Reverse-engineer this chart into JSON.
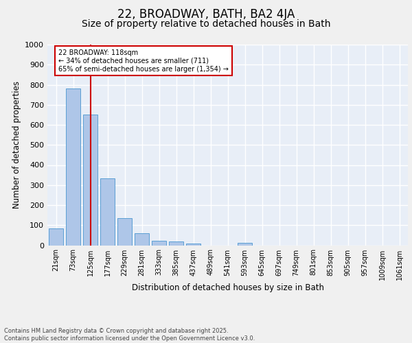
{
  "title1": "22, BROADWAY, BATH, BA2 4JA",
  "title2": "Size of property relative to detached houses in Bath",
  "xlabel": "Distribution of detached houses by size in Bath",
  "ylabel": "Number of detached properties",
  "bar_labels": [
    "21sqm",
    "73sqm",
    "125sqm",
    "177sqm",
    "229sqm",
    "281sqm",
    "333sqm",
    "385sqm",
    "437sqm",
    "489sqm",
    "541sqm",
    "593sqm",
    "645sqm",
    "697sqm",
    "749sqm",
    "801sqm",
    "853sqm",
    "905sqm",
    "957sqm",
    "1009sqm",
    "1061sqm"
  ],
  "bar_values": [
    85,
    780,
    650,
    335,
    135,
    60,
    22,
    18,
    10,
    0,
    0,
    12,
    0,
    0,
    0,
    0,
    0,
    0,
    0,
    0,
    0
  ],
  "bar_color": "#aec6e8",
  "bar_edgecolor": "#5a9fd4",
  "vline_x": 2,
  "vline_color": "#cc0000",
  "annotation_text": "22 BROADWAY: 118sqm\n← 34% of detached houses are smaller (711)\n65% of semi-detached houses are larger (1,354) →",
  "annotation_box_color": "#ffffff",
  "annotation_box_edgecolor": "#cc0000",
  "background_color": "#e8eef7",
  "grid_color": "#ffffff",
  "fig_background": "#f0f0f0",
  "ylim": [
    0,
    1000
  ],
  "yticks": [
    0,
    100,
    200,
    300,
    400,
    500,
    600,
    700,
    800,
    900,
    1000
  ],
  "footer_text": "Contains HM Land Registry data © Crown copyright and database right 2025.\nContains public sector information licensed under the Open Government Licence v3.0.",
  "title1_fontsize": 12,
  "title2_fontsize": 10
}
